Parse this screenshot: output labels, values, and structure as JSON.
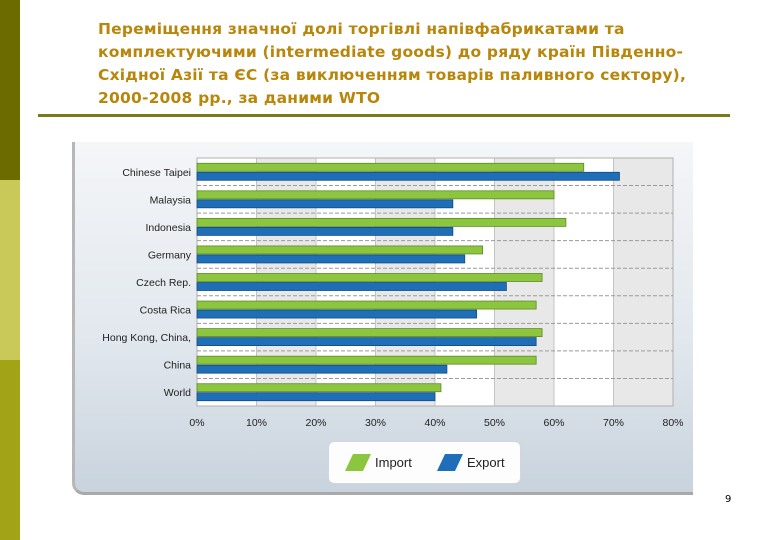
{
  "slide": {
    "title": "Переміщення значної долі торгівлі напівфабрикатами та комплектуючими (intermediate goods) до ряду країн Південно-Східної Азії та ЄС (за виключенням товарів паливного сектору),    2000-2008 рр., за даними WTO",
    "page_number": "9"
  },
  "colors": {
    "import": "#8cc63f",
    "export": "#1e6fb8",
    "accent_dark": "#6b6b00",
    "title": "#b8860b"
  },
  "chart_data": {
    "type": "bar",
    "orientation": "horizontal",
    "categories": [
      "Chinese Taipei",
      "Malaysia",
      "Indonesia",
      "Germany",
      "Czech Rep.",
      "Costa Rica",
      "Hong Kong, China,",
      "China",
      "World"
    ],
    "series": [
      {
        "name": "Import",
        "values": [
          65,
          60,
          62,
          48,
          58,
          57,
          58,
          57,
          41
        ]
      },
      {
        "name": "Export",
        "values": [
          71,
          43,
          43,
          45,
          52,
          47,
          57,
          42,
          40
        ]
      }
    ],
    "x_ticks": [
      "0%",
      "10%",
      "20%",
      "30%",
      "40%",
      "50%",
      "60%",
      "70%",
      "80%"
    ],
    "xlim": [
      0,
      80
    ],
    "legend": [
      "Import",
      "Export"
    ],
    "legend_position": "bottom-center",
    "title": "",
    "xlabel": "",
    "ylabel": ""
  }
}
